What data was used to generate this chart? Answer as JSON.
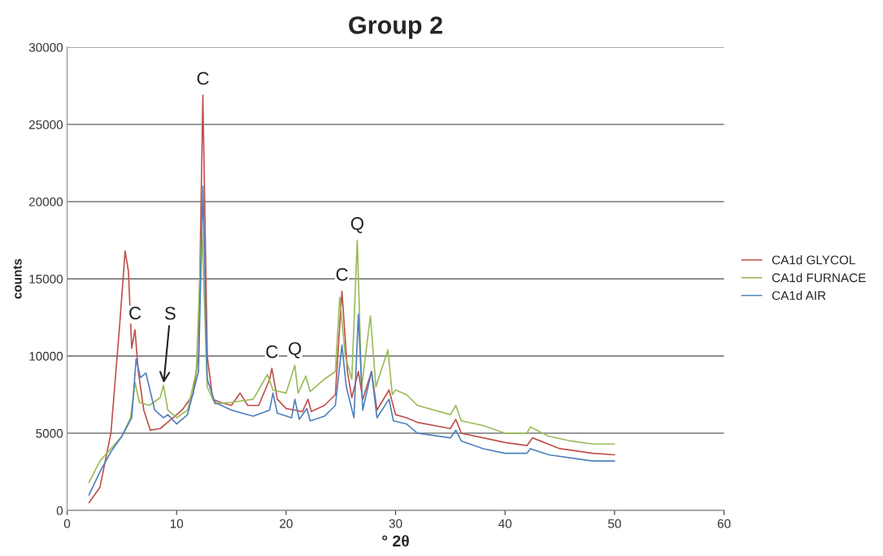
{
  "chart_data": {
    "type": "line",
    "title": "Group 2",
    "xlabel": "° 2θ",
    "ylabel": "counts",
    "xlim": [
      0,
      60
    ],
    "xticks": [
      0,
      10,
      20,
      30,
      40,
      50,
      60
    ],
    "ylim": [
      0,
      30000
    ],
    "yticks": [
      0,
      5000,
      10000,
      15000,
      20000,
      25000,
      30000
    ],
    "grid": "y",
    "legend": "right",
    "marker": "none",
    "line_style": "solid",
    "annotations": [
      {
        "text": "C",
        "x": 12.4,
        "y": 26900
      },
      {
        "text": "C",
        "x": 6.2,
        "y": 11700
      },
      {
        "text": "S",
        "x": 8.8,
        "y": 8100
      },
      {
        "text": "C",
        "x": 18.7,
        "y": 9200
      },
      {
        "text": "Q",
        "x": 20.8,
        "y": 9400
      },
      {
        "text": "C",
        "x": 25.1,
        "y": 14200
      },
      {
        "text": "Q",
        "x": 26.5,
        "y": 17500
      }
    ],
    "series": [
      {
        "name": "CA1d GLYCOL",
        "color": "#c0504d",
        "x": [
          2,
          3,
          4,
          4.8,
          5.3,
          5.6,
          5.9,
          6.2,
          6.5,
          7,
          7.6,
          8.5,
          9.5,
          10.5,
          11,
          11.5,
          12,
          12.4,
          12.8,
          13.3,
          14,
          15,
          15.8,
          16.5,
          17.5,
          18.5,
          18.7,
          19.2,
          20,
          20.8,
          21.5,
          22,
          22.3,
          23.5,
          24.5,
          25.1,
          25.6,
          26,
          26.6,
          27,
          27.8,
          28.3,
          29.4,
          30,
          31,
          32,
          35,
          35.5,
          36,
          38,
          40,
          42,
          42.5,
          45,
          48,
          50
        ],
        "values": [
          500,
          1500,
          5000,
          12000,
          16800,
          15500,
          10500,
          11700,
          9000,
          6500,
          5200,
          5300,
          5900,
          6500,
          7000,
          7500,
          10000,
          26900,
          10000,
          7200,
          7000,
          6800,
          7600,
          6800,
          6800,
          8500,
          9200,
          7200,
          6600,
          6500,
          6400,
          7200,
          6400,
          6800,
          7500,
          14200,
          9000,
          7300,
          9000,
          7200,
          9000,
          6500,
          7800,
          6200,
          6000,
          5700,
          5300,
          5900,
          5000,
          4700,
          4400,
          4200,
          4700,
          4000,
          3700,
          3600
        ]
      },
      {
        "name": "CA1d FURNACE",
        "color": "#9bbb59",
        "x": [
          2,
          3,
          4,
          5,
          5.8,
          6.2,
          6.6,
          7.5,
          8.5,
          8.8,
          9.2,
          10,
          11,
          11.8,
          12.3,
          12.8,
          13.5,
          15,
          17,
          18.3,
          18.8,
          20,
          20.8,
          21.1,
          21.8,
          22.2,
          23.5,
          24.5,
          24.9,
          25.4,
          26,
          26.5,
          26.9,
          27.7,
          28.2,
          29.3,
          29.7,
          30,
          31,
          32,
          35,
          35.5,
          36,
          38,
          40,
          42,
          42.3,
          44,
          46,
          48,
          50
        ],
        "values": [
          1800,
          3200,
          4000,
          4800,
          6000,
          8300,
          7000,
          6800,
          7300,
          8100,
          6500,
          6000,
          6500,
          9000,
          18500,
          8000,
          6900,
          7000,
          7200,
          8800,
          7800,
          7600,
          9400,
          7600,
          8700,
          7700,
          8500,
          9000,
          13800,
          10000,
          8500,
          17500,
          8000,
          12600,
          8000,
          10400,
          7500,
          7800,
          7500,
          6800,
          6200,
          6800,
          5800,
          5500,
          5000,
          5000,
          5400,
          4800,
          4500,
          4300,
          4300
        ]
      },
      {
        "name": "CA1d AIR",
        "color": "#4f81bd",
        "x": [
          2,
          3,
          4,
          5,
          5.9,
          6.3,
          6.7,
          7.2,
          7.5,
          8,
          8.8,
          9.2,
          10,
          11,
          12,
          12.4,
          12.8,
          13.5,
          15,
          17,
          18.5,
          18.8,
          19.2,
          20.5,
          20.8,
          21.2,
          21.9,
          22.2,
          23.5,
          24.5,
          25.1,
          25.5,
          26.2,
          26.6,
          27,
          27.8,
          28.3,
          29.4,
          29.8,
          31,
          32,
          35,
          35.5,
          36,
          38,
          40,
          42,
          42.3,
          44,
          46,
          48,
          50
        ],
        "values": [
          1000,
          2500,
          3800,
          4800,
          6000,
          9800,
          8600,
          8900,
          8000,
          6500,
          6000,
          6200,
          5600,
          6200,
          9000,
          21000,
          8500,
          7000,
          6500,
          6100,
          6500,
          7600,
          6300,
          6000,
          7200,
          5900,
          6600,
          5800,
          6100,
          6800,
          10700,
          8000,
          6000,
          12700,
          6500,
          9000,
          6000,
          7200,
          5800,
          5600,
          5000,
          4700,
          5200,
          4500,
          4000,
          3700,
          3700,
          4000,
          3600,
          3400,
          3200,
          3200
        ]
      }
    ]
  }
}
